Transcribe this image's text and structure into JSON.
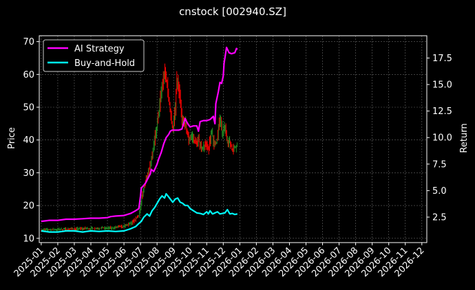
{
  "chart_data": {
    "type": "line",
    "title": "cnstock [002940.SZ]",
    "xlabel": "",
    "ylabel": "Price",
    "y2label": "Return",
    "ylim": [
      8.7,
      71.8
    ],
    "y2lim": [
      0.1,
      19.6
    ],
    "yticks": [
      10,
      20,
      30,
      40,
      50,
      60,
      70
    ],
    "y2ticks": [
      "2.5",
      "5.0",
      "7.5",
      "10.0",
      "12.5",
      "15.0",
      "17.5"
    ],
    "x_categories": [
      "2025-01",
      "2025-02",
      "2025-03",
      "2025-04",
      "2025-05",
      "2025-06",
      "2025-07",
      "2025-08",
      "2025-09",
      "2025-10",
      "2025-11",
      "2025-12",
      "2026-01",
      "2026-02",
      "2026-03",
      "2026-04",
      "2026-05",
      "2026-06",
      "2026-07",
      "2026-08",
      "2026-09",
      "2026-10",
      "2026-11",
      "2026-12"
    ],
    "xlim": [
      -0.12,
      23.3
    ],
    "grid": true,
    "legend_position": "top-left",
    "candle_colors": {
      "up": "#228b22",
      "down": "#ff0000"
    },
    "price_path": [
      [
        0.0,
        12.6
      ],
      [
        0.5,
        12.6
      ],
      [
        1.0,
        12.7
      ],
      [
        1.5,
        12.8
      ],
      [
        2.0,
        12.9
      ],
      [
        2.5,
        13.0
      ],
      [
        3.0,
        13.0
      ],
      [
        3.5,
        13.1
      ],
      [
        4.0,
        13.1
      ],
      [
        4.5,
        13.3
      ],
      [
        5.0,
        13.6
      ],
      [
        5.5,
        14.8
      ],
      [
        5.9,
        17.0
      ],
      [
        6.1,
        23.0
      ],
      [
        6.35,
        28.5
      ],
      [
        6.6,
        33.0
      ],
      [
        6.85,
        40.0
      ],
      [
        7.05,
        46.0
      ],
      [
        7.25,
        55.0
      ],
      [
        7.45,
        61.0
      ],
      [
        7.6,
        57.0
      ],
      [
        7.8,
        48.0
      ],
      [
        7.95,
        43.0
      ],
      [
        8.1,
        50.0
      ],
      [
        8.2,
        59.0
      ],
      [
        8.35,
        54.0
      ],
      [
        8.5,
        46.0
      ],
      [
        8.7,
        45.0
      ],
      [
        8.9,
        40.0
      ],
      [
        9.1,
        41.5
      ],
      [
        9.3,
        39.0
      ],
      [
        9.5,
        40.0
      ],
      [
        9.7,
        37.5
      ],
      [
        9.9,
        38.5
      ],
      [
        10.1,
        37.0
      ],
      [
        10.3,
        43.0
      ],
      [
        10.45,
        38.0
      ],
      [
        10.6,
        39.5
      ],
      [
        10.8,
        46.5
      ],
      [
        10.95,
        42.0
      ],
      [
        11.1,
        44.0
      ],
      [
        11.25,
        40.0
      ],
      [
        11.4,
        39.0
      ],
      [
        11.55,
        37.0
      ],
      [
        11.7,
        38.0
      ],
      [
        11.85,
        38.2
      ]
    ],
    "series": [
      {
        "name": "AI Strategy",
        "color": "#ff00ff",
        "axis": "right",
        "x": [
          0.0,
          0.5,
          1.0,
          1.5,
          2.0,
          2.5,
          3.0,
          3.5,
          4.0,
          4.2,
          4.5,
          5.0,
          5.4,
          5.7,
          5.9,
          6.0,
          6.05,
          6.2,
          6.3,
          6.5,
          6.6,
          6.65,
          6.8,
          7.0,
          7.1,
          7.25,
          7.4,
          7.55,
          7.7,
          7.8,
          7.9,
          8.0,
          8.3,
          8.5,
          8.7,
          8.75,
          8.9,
          9.0,
          9.2,
          9.4,
          9.5,
          9.6,
          9.8,
          10.0,
          10.2,
          10.4,
          10.5,
          10.55,
          10.7,
          10.8,
          10.9,
          11.0,
          11.05,
          11.2,
          11.35,
          11.5,
          11.7,
          11.8,
          11.85
        ],
        "values": [
          2.1,
          2.2,
          2.2,
          2.3,
          2.3,
          2.35,
          2.4,
          2.4,
          2.45,
          2.55,
          2.6,
          2.65,
          2.85,
          3.1,
          3.3,
          4.5,
          5.25,
          5.5,
          5.7,
          6.3,
          6.6,
          7.0,
          6.8,
          7.5,
          8.0,
          8.6,
          9.4,
          10.0,
          10.3,
          10.6,
          10.7,
          10.7,
          10.7,
          10.8,
          11.8,
          11.6,
          11.2,
          11.0,
          11.1,
          11.1,
          10.6,
          11.5,
          11.6,
          11.6,
          11.7,
          12.0,
          11.3,
          13.2,
          14.3,
          15.2,
          15.1,
          15.8,
          17.0,
          18.5,
          18.0,
          17.9,
          18.0,
          18.4,
          18.3
        ]
      },
      {
        "name": "Buy-and-Hold",
        "color": "#00ffff",
        "axis": "right",
        "x": [
          0.0,
          0.5,
          1.0,
          1.5,
          2.0,
          2.5,
          3.0,
          3.5,
          4.0,
          4.5,
          5.0,
          5.4,
          5.7,
          5.9,
          6.05,
          6.2,
          6.4,
          6.55,
          6.7,
          6.85,
          7.0,
          7.15,
          7.3,
          7.45,
          7.55,
          7.65,
          7.8,
          7.95,
          8.1,
          8.25,
          8.4,
          8.55,
          8.7,
          8.85,
          9.0,
          9.2,
          9.4,
          9.6,
          9.8,
          10.0,
          10.1,
          10.2,
          10.35,
          10.5,
          10.65,
          10.8,
          10.95,
          11.1,
          11.25,
          11.4,
          11.55,
          11.7,
          11.85
        ],
        "values": [
          1.2,
          1.1,
          1.1,
          1.2,
          1.2,
          1.1,
          1.2,
          1.15,
          1.2,
          1.15,
          1.2,
          1.4,
          1.6,
          1.9,
          2.1,
          2.5,
          2.8,
          2.6,
          3.1,
          3.4,
          3.8,
          4.2,
          4.5,
          4.3,
          4.7,
          4.5,
          4.2,
          3.9,
          4.2,
          4.3,
          3.9,
          3.8,
          3.6,
          3.6,
          3.3,
          3.1,
          2.9,
          2.85,
          2.75,
          3.0,
          2.8,
          3.1,
          2.8,
          2.9,
          3.0,
          2.8,
          2.85,
          2.9,
          3.2,
          2.8,
          2.85,
          2.75,
          2.8
        ]
      }
    ]
  }
}
